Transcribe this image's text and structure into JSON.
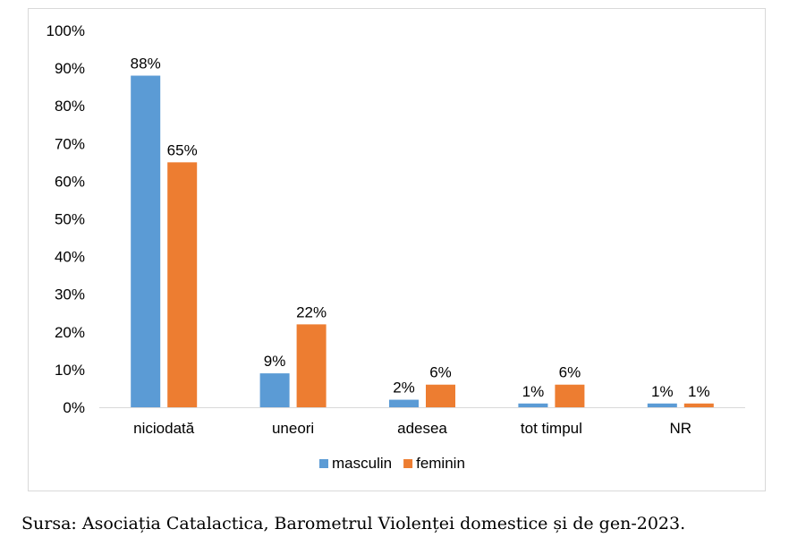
{
  "chart_data": {
    "type": "bar",
    "categories": [
      "niciodată",
      "uneori",
      "adesea",
      "tot timpul",
      "NR"
    ],
    "series": [
      {
        "name": "masculin",
        "values": [
          88,
          9,
          2,
          1,
          1
        ],
        "color": "#5b9bd5",
        "labels": [
          "88%",
          "9%",
          "2%",
          "1%",
          "1%"
        ]
      },
      {
        "name": "feminin",
        "values": [
          65,
          22,
          6,
          6,
          1
        ],
        "color": "#ed7d31",
        "labels": [
          "65%",
          "22%",
          "6%",
          "6%",
          "1%"
        ]
      }
    ],
    "y_ticks": [
      "0%",
      "10%",
      "20%",
      "30%",
      "40%",
      "50%",
      "60%",
      "70%",
      "80%",
      "90%",
      "100%"
    ],
    "ylim": [
      0,
      100
    ],
    "grid": false,
    "legend_position": "bottom",
    "title": "",
    "xlabel": "",
    "ylabel": ""
  },
  "source": "Sursa: Asociația Catalactica, Barometrul Violenței domestice și de gen-2023."
}
